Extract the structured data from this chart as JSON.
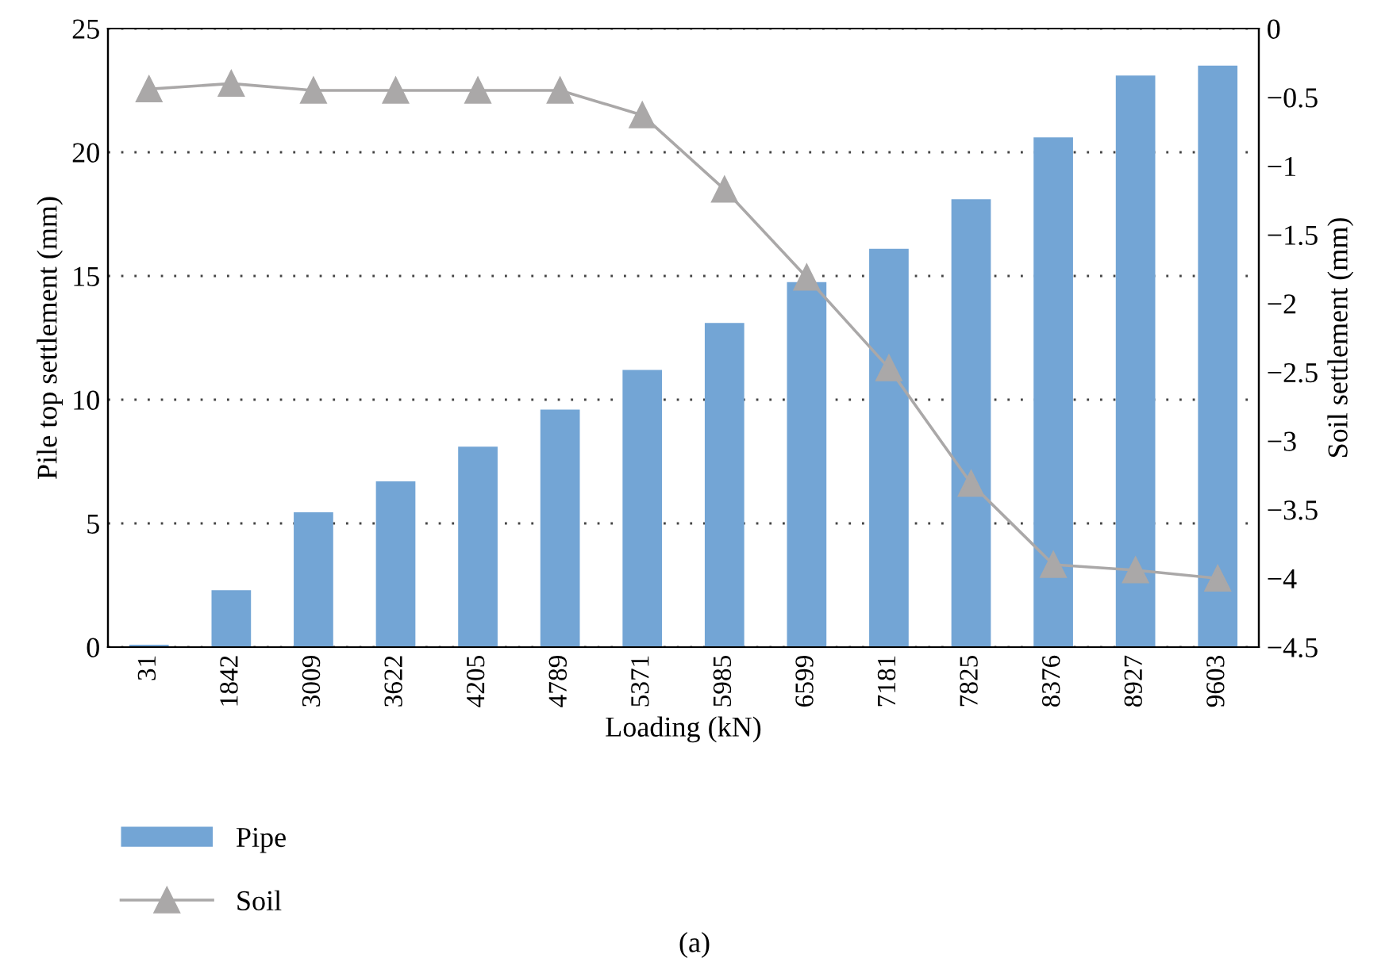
{
  "chart_data": {
    "type": "bar",
    "xlabel": "Loading (kN)",
    "ylabel": "Pile top settlement (mm)",
    "y2label": "Soil settlement (mm)",
    "categories": [
      "31",
      "1842",
      "3009",
      "3622",
      "4205",
      "4789",
      "5371",
      "5985",
      "6599",
      "7181",
      "7825",
      "8376",
      "8927",
      "9603"
    ],
    "series": [
      {
        "name": "Pipe",
        "color": "#73a5d5",
        "values": [
          0.1,
          2.3,
          5.45,
          6.7,
          8.1,
          9.6,
          11.2,
          13.1,
          14.75,
          16.1,
          18.1,
          20.6,
          23.1,
          23.5
        ]
      },
      {
        "name": "Soil",
        "type": "line",
        "axis": "y2",
        "color": "#aaa8a8",
        "marker": "triangle",
        "values": [
          -0.44,
          -0.4,
          -0.45,
          -0.45,
          -0.45,
          -0.45,
          -0.63,
          -1.17,
          -1.81,
          -2.47,
          -3.31,
          -3.9,
          -3.94,
          -4.0
        ]
      }
    ],
    "ylim": [
      0,
      25
    ],
    "yticks": [
      0,
      5,
      10,
      15,
      20,
      25
    ],
    "y2lim": [
      -4.5,
      0
    ],
    "y2ticks": [
      {
        "value": -4.5,
        "label": "−4.5"
      },
      {
        "value": -4,
        "label": "−4"
      },
      {
        "value": -3.5,
        "label": "−3.5"
      },
      {
        "value": -3,
        "label": "−3"
      },
      {
        "value": -2.5,
        "label": "−2.5"
      },
      {
        "value": -2,
        "label": "−2"
      },
      {
        "value": -1.5,
        "label": "−1.5"
      },
      {
        "value": -1,
        "label": "−1"
      },
      {
        "value": -0.5,
        "label": "−0.5"
      },
      0
    ],
    "grid": "y",
    "legend": "bottom left",
    "annotations": [
      "(a)"
    ]
  }
}
